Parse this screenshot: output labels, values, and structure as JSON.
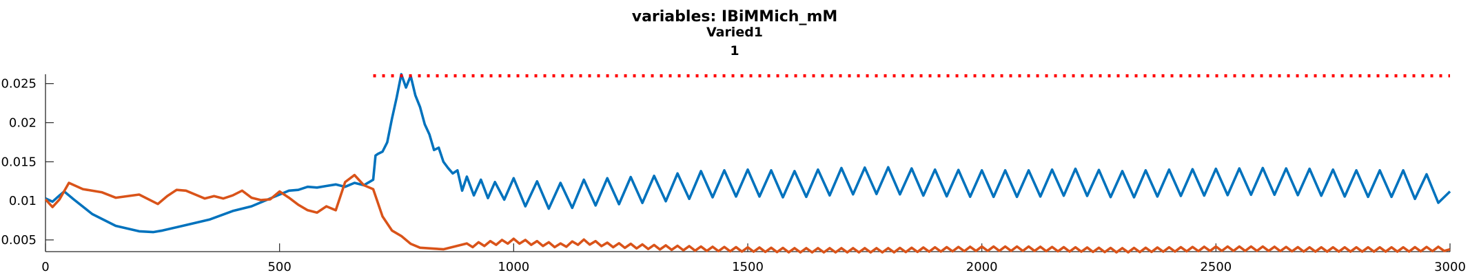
{
  "chart_data": {
    "type": "line",
    "title": "variables: IBiMMich_mM",
    "subtitle_lines": [
      "Varied1",
      "1"
    ],
    "xlabel": "",
    "ylabel": "",
    "xlim": [
      0,
      3000
    ],
    "ylim": [
      0.0035,
      0.0262
    ],
    "xticks": [
      0,
      500,
      1000,
      1500,
      2000,
      2500,
      3000
    ],
    "yticks": [
      0.005,
      0.01,
      0.015,
      0.02,
      0.025
    ],
    "ytick_labels": [
      "0.005",
      "0.01",
      "0.015",
      "0.02",
      "0.025"
    ],
    "grid": false,
    "legend": "none",
    "colors": {
      "blue": "#0072BD",
      "orange": "#D95319",
      "reference": "#FF0000"
    },
    "series": [
      {
        "key": "blue",
        "style": "solid",
        "x": [
          0,
          15,
          30,
          40,
          60,
          100,
          150,
          200,
          230,
          250,
          300,
          350,
          400,
          420,
          440,
          460,
          500,
          520,
          540,
          560,
          580,
          600,
          620,
          640,
          660,
          680,
          700,
          705,
          710,
          720,
          730,
          740,
          750,
          760,
          770,
          780,
          790,
          800,
          810,
          820,
          830,
          840,
          850,
          860,
          870,
          880,
          900,
          930,
          960,
          1000,
          1050,
          1100,
          1150,
          1200,
          1300,
          1400,
          1500,
          1600,
          1700,
          1800,
          1900,
          2000,
          2100,
          2200,
          2300,
          2400,
          2500,
          2600,
          2700,
          2800,
          2900,
          3000
        ],
        "y": [
          0.0103,
          0.0099,
          0.0107,
          0.0112,
          0.0102,
          0.0083,
          0.0068,
          0.0061,
          0.006,
          0.0062,
          0.0069,
          0.0076,
          0.0087,
          0.009,
          0.0093,
          0.0098,
          0.0108,
          0.0113,
          0.0114,
          0.0118,
          0.0117,
          0.0119,
          0.0121,
          0.0118,
          0.0123,
          0.012,
          0.0127,
          0.0158,
          0.016,
          0.0163,
          0.0175,
          0.0205,
          0.0232,
          0.0262,
          0.0245,
          0.026,
          0.0235,
          0.022,
          0.0198,
          0.0185,
          0.0165,
          0.0168,
          0.015,
          0.0142,
          0.0135,
          0.0128,
          0.012,
          0.0116,
          0.0113,
          0.0112,
          0.0108,
          0.0106,
          0.011,
          0.0112,
          0.0115,
          0.0121,
          0.0123,
          0.0121,
          0.0125,
          0.0126,
          0.0123,
          0.0122,
          0.0122,
          0.0124,
          0.0121,
          0.0123,
          0.0124,
          0.0125,
          0.0124,
          0.0122,
          0.0122,
          0.0112
        ]
      },
      {
        "key": "orange",
        "style": "solid",
        "x": [
          0,
          15,
          30,
          50,
          80,
          120,
          150,
          200,
          240,
          260,
          280,
          300,
          320,
          340,
          360,
          380,
          400,
          420,
          440,
          460,
          480,
          500,
          520,
          540,
          560,
          580,
          600,
          620,
          640,
          660,
          680,
          700,
          720,
          740,
          760,
          780,
          800,
          850,
          900,
          950,
          1000,
          1050,
          1100,
          1150,
          1200,
          1300,
          1400,
          1500,
          1600,
          1700,
          1800,
          1900,
          2000,
          2100,
          2200,
          2300,
          2400,
          2500,
          2600,
          2700,
          2800,
          2900,
          3000
        ],
        "y": [
          0.0102,
          0.0092,
          0.0102,
          0.0123,
          0.0115,
          0.0111,
          0.0104,
          0.0108,
          0.0096,
          0.0106,
          0.0114,
          0.0113,
          0.0108,
          0.0103,
          0.0106,
          0.0103,
          0.0107,
          0.0113,
          0.0104,
          0.0101,
          0.0102,
          0.0112,
          0.0104,
          0.0095,
          0.0088,
          0.0085,
          0.0093,
          0.0088,
          0.0124,
          0.0133,
          0.012,
          0.0115,
          0.008,
          0.0062,
          0.0055,
          0.0045,
          0.004,
          0.0038,
          0.0042,
          0.0045,
          0.0048,
          0.0045,
          0.0042,
          0.0047,
          0.0043,
          0.004,
          0.0038,
          0.0037,
          0.0036,
          0.0036,
          0.0036,
          0.0037,
          0.0038,
          0.0038,
          0.0037,
          0.0036,
          0.0037,
          0.0038,
          0.0038,
          0.0037,
          0.0037,
          0.0037,
          0.0038
        ]
      },
      {
        "key": "reference",
        "style": "dotted",
        "x": [
          700,
          3000
        ],
        "y": [
          0.026,
          0.026
        ]
      }
    ]
  }
}
